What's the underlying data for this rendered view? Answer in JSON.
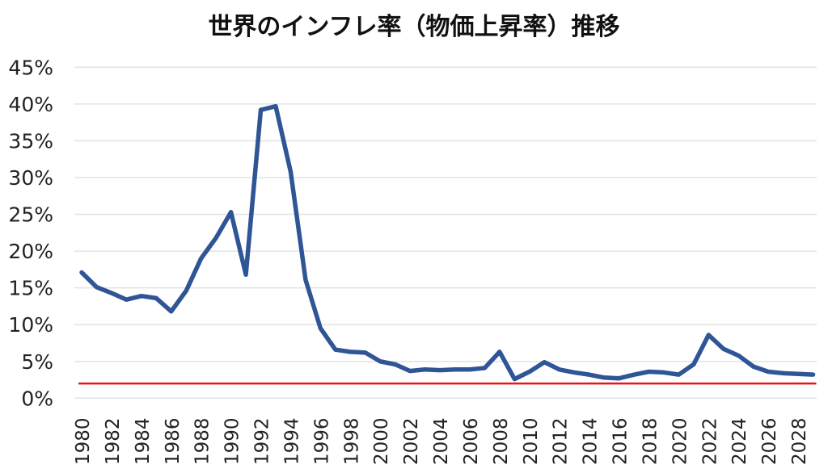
{
  "chart_data": {
    "type": "line",
    "title": "世界のインフレ率（物価上昇率）推移",
    "xlabel": "",
    "ylabel": "",
    "ylim": [
      0,
      45
    ],
    "yticks": [
      "0%",
      "5%",
      "10%",
      "15%",
      "20%",
      "25%",
      "30%",
      "35%",
      "40%",
      "45%"
    ],
    "x": [
      1980,
      1981,
      1982,
      1983,
      1984,
      1985,
      1986,
      1987,
      1988,
      1989,
      1990,
      1991,
      1992,
      1993,
      1994,
      1995,
      1996,
      1997,
      1998,
      1999,
      2000,
      2001,
      2002,
      2003,
      2004,
      2005,
      2006,
      2007,
      2008,
      2009,
      2010,
      2011,
      2012,
      2013,
      2014,
      2015,
      2016,
      2017,
      2018,
      2019,
      2020,
      2021,
      2022,
      2023,
      2024,
      2025,
      2026,
      2027,
      2028,
      2029
    ],
    "xtick_labels": [
      "1980",
      "1982",
      "1984",
      "1986",
      "1988",
      "1990",
      "1992",
      "1994",
      "1996",
      "1998",
      "2000",
      "2002",
      "2004",
      "2006",
      "2008",
      "2010",
      "2012",
      "2014",
      "2016",
      "2018",
      "2020",
      "2022",
      "2024",
      "2026",
      "2028"
    ],
    "series": [
      {
        "name": "インフレ率",
        "color": "#2f5597",
        "values": [
          17.1,
          15.1,
          14.3,
          13.4,
          13.9,
          13.6,
          11.8,
          14.6,
          19.0,
          21.8,
          25.3,
          16.8,
          39.2,
          39.7,
          30.8,
          16.1,
          9.5,
          6.6,
          6.3,
          6.2,
          5.0,
          4.6,
          3.7,
          3.9,
          3.8,
          3.9,
          3.9,
          4.1,
          6.3,
          2.6,
          3.6,
          4.9,
          3.9,
          3.5,
          3.2,
          2.8,
          2.7,
          3.2,
          3.6,
          3.5,
          3.2,
          4.6,
          8.6,
          6.7,
          5.8,
          4.3,
          3.6,
          3.4,
          3.3,
          3.2
        ]
      }
    ],
    "reference_line": {
      "value": 2,
      "color": "#e8141c"
    },
    "grid": true
  }
}
